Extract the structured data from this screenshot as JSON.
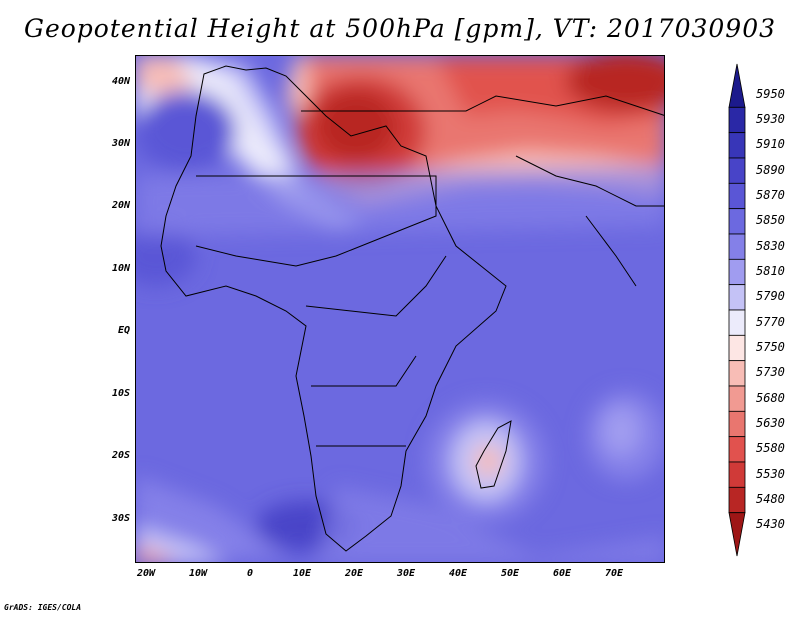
{
  "title": "Geopotential Height at 500hPa [gpm], VT: 2017030903",
  "lat_labels": [
    "40N",
    "30N",
    "20N",
    "10N",
    "EQ",
    "10S",
    "20S",
    "30S"
  ],
  "lat_values": [
    40,
    30,
    20,
    10,
    0,
    -10,
    -20,
    -30
  ],
  "lon_labels": [
    "20W",
    "10W",
    "0",
    "10E",
    "20E",
    "30E",
    "40E",
    "50E",
    "60E",
    "70E"
  ],
  "lon_values": [
    -20,
    -10,
    0,
    10,
    20,
    30,
    40,
    50,
    60,
    70
  ],
  "extent": {
    "lon_min": -22,
    "lon_max": 80,
    "lat_min": -36.5,
    "lat_max": 45
  },
  "colorbar": {
    "levels": [
      "5950",
      "5930",
      "5910",
      "5890",
      "5870",
      "5850",
      "5830",
      "5810",
      "5790",
      "5770",
      "5750",
      "5730",
      "5680",
      "5630",
      "5580",
      "5530",
      "5480",
      "5430"
    ],
    "colors": [
      "#1c1a8c",
      "#2a28a6",
      "#3836b8",
      "#4844c8",
      "#5a56d6",
      "#6c69e0",
      "#8480e8",
      "#a09cf0",
      "#c4c2f6",
      "#ecebfb",
      "#fde6e4",
      "#f8bdb6",
      "#f19a92",
      "#e9766f",
      "#e1524e",
      "#d03a38",
      "#b82624",
      "#9e1616"
    ]
  },
  "credit": "GrADS: IGES/COLA"
}
